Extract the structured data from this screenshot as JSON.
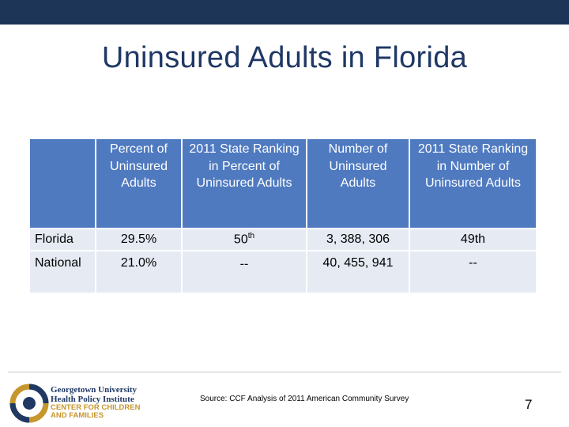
{
  "slide": {
    "title": "Uninsured Adults in Florida",
    "page_number": "7",
    "source": "Source: CCF Analysis of 2011 American Community Survey"
  },
  "table": {
    "headers": [
      "",
      "Percent of Uninsured Adults",
      "2011 State Ranking in Percent of Uninsured Adults",
      "Number of Uninsured Adults",
      "2011 State Ranking in Number of Uninsured Adults"
    ],
    "rows": [
      {
        "label": "Florida",
        "pct": "29.5%",
        "rank_pct_num": "50",
        "rank_pct_sup": "th",
        "number": "3, 388, 306",
        "rank_num": "49th"
      },
      {
        "label": "National",
        "pct": "21.0%",
        "rank_pct_num": "--",
        "rank_pct_sup": "",
        "number": "40, 455, 941",
        "rank_num": "--"
      }
    ]
  },
  "logo": {
    "line1": "Georgetown University",
    "line2": "Health Policy Institute",
    "line3": "CENTER FOR CHILDREN",
    "line4": "AND FAMILIES"
  },
  "colors": {
    "top_bar": "#1d3557",
    "title": "#1f3864",
    "header_cell": "#4f7ac0",
    "body_cell": "#e5eaf3",
    "logo_gold": "#c7962c"
  }
}
